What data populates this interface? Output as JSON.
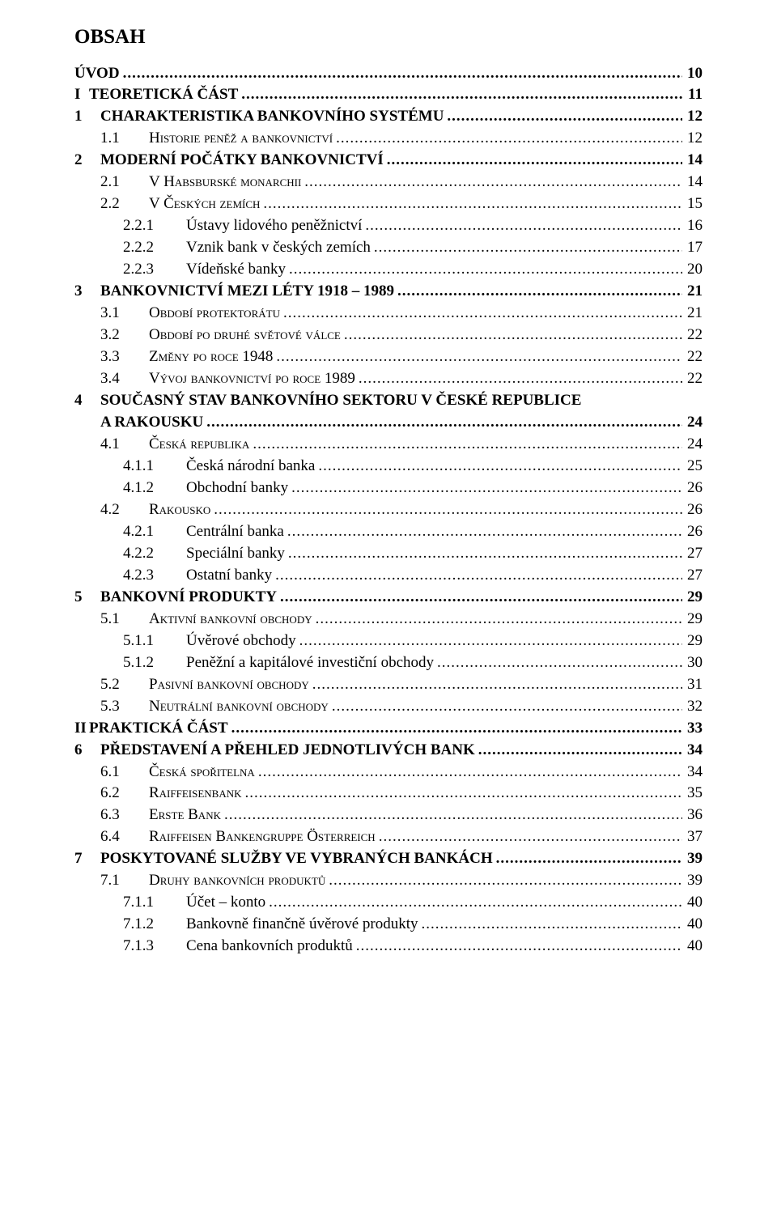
{
  "title": "OBSAH",
  "typography": {
    "font_family": "Times New Roman",
    "body_fontsize_pt": 14,
    "title_fontsize_pt": 19,
    "color": "#000000",
    "background": "#ffffff"
  },
  "entries": [
    {
      "level": "h0",
      "num": "",
      "label": "ÚVOD",
      "page": "10",
      "bold": true
    },
    {
      "level": "part",
      "num": "I",
      "label": "TEORETICKÁ ČÁST",
      "page": "11",
      "bold": true
    },
    {
      "level": "h1",
      "num": "1",
      "label": "CHARAKTERISTIKA BANKOVNÍHO SYSTÉMU",
      "page": "12",
      "bold": true
    },
    {
      "level": "h2",
      "num": "1.1",
      "label": "Historie peněž a bankovnictví",
      "page": "12",
      "smallcaps": true
    },
    {
      "level": "h1",
      "num": "2",
      "label": "MODERNÍ POČÁTKY BANKOVNICTVÍ",
      "page": "14",
      "bold": true
    },
    {
      "level": "h2",
      "num": "2.1",
      "label": "V Habsburské monarchii",
      "page": "14",
      "smallcaps": true
    },
    {
      "level": "h2",
      "num": "2.2",
      "label": "V Českých zemích",
      "page": "15",
      "smallcaps": true
    },
    {
      "level": "h3",
      "num": "2.2.1",
      "label": "Ústavy lidového peněžnictví",
      "page": "16"
    },
    {
      "level": "h3",
      "num": "2.2.2",
      "label": "Vznik bank v českých zemích",
      "page": "17"
    },
    {
      "level": "h3",
      "num": "2.2.3",
      "label": "Vídeňské banky",
      "page": "20"
    },
    {
      "level": "h1",
      "num": "3",
      "label": "BANKOVNICTVÍ MEZI LÉTY 1918 – 1989",
      "page": "21",
      "bold": true
    },
    {
      "level": "h2",
      "num": "3.1",
      "label": "Období protektorátu",
      "page": "21",
      "smallcaps": true
    },
    {
      "level": "h2",
      "num": "3.2",
      "label": "Období po druhé světové válce",
      "page": "22",
      "smallcaps": true
    },
    {
      "level": "h2",
      "num": "3.3",
      "label": "Změny po roce 1948",
      "page": "22",
      "smallcaps": true
    },
    {
      "level": "h2",
      "num": "3.4",
      "label": "Vývoj bankovnictví po roce 1989",
      "page": "22",
      "smallcaps": true
    },
    {
      "level": "h1",
      "num": "4",
      "label": "SOUČASNÝ STAV BANKOVNÍHO SEKTORU V ČESKÉ REPUBLICE A RAKOUSKU",
      "page": "24",
      "bold": true,
      "wrap": true
    },
    {
      "level": "h2",
      "num": "4.1",
      "label": "Česká republika",
      "page": "24",
      "smallcaps": true
    },
    {
      "level": "h3",
      "num": "4.1.1",
      "label": "Česká národní banka",
      "page": "25"
    },
    {
      "level": "h3",
      "num": "4.1.2",
      "label": "Obchodní banky",
      "page": "26"
    },
    {
      "level": "h2",
      "num": "4.2",
      "label": "Rakousko",
      "page": "26",
      "smallcaps": true
    },
    {
      "level": "h3",
      "num": "4.2.1",
      "label": "Centrální banka",
      "page": "26"
    },
    {
      "level": "h3",
      "num": "4.2.2",
      "label": "Speciální banky",
      "page": "27"
    },
    {
      "level": "h3",
      "num": "4.2.3",
      "label": "Ostatní banky",
      "page": "27"
    },
    {
      "level": "h1",
      "num": "5",
      "label": "BANKOVNÍ PRODUKTY",
      "page": "29",
      "bold": true
    },
    {
      "level": "h2",
      "num": "5.1",
      "label": "Aktivní bankovní obchody",
      "page": "29",
      "smallcaps": true
    },
    {
      "level": "h3",
      "num": "5.1.1",
      "label": "Úvěrové obchody",
      "page": "29"
    },
    {
      "level": "h3",
      "num": "5.1.2",
      "label": "Peněžní a kapitálové investiční obchody",
      "page": "30"
    },
    {
      "level": "h2",
      "num": "5.2",
      "label": "Pasivní bankovní obchody",
      "page": "31",
      "smallcaps": true
    },
    {
      "level": "h2",
      "num": "5.3",
      "label": "Neutrální bankovní obchody",
      "page": "32",
      "smallcaps": true
    },
    {
      "level": "part",
      "num": "II",
      "label": "PRAKTICKÁ ČÁST",
      "page": "33",
      "bold": true
    },
    {
      "level": "h1",
      "num": "6",
      "label": "PŘEDSTAVENÍ A PŘEHLED JEDNOTLIVÝCH BANK",
      "page": "34",
      "bold": true
    },
    {
      "level": "h2",
      "num": "6.1",
      "label": "Česká spořitelna",
      "page": "34",
      "smallcaps": true
    },
    {
      "level": "h2",
      "num": "6.2",
      "label": "Raiffeisenbank",
      "page": "35",
      "smallcaps": true
    },
    {
      "level": "h2",
      "num": "6.3",
      "label": "Erste Bank",
      "page": "36",
      "smallcaps": true
    },
    {
      "level": "h2",
      "num": "6.4",
      "label": "Raiffeisen Bankengruppe Österreich",
      "page": "37",
      "smallcaps": true
    },
    {
      "level": "h1",
      "num": "7",
      "label": "POSKYTOVANÉ SLUŽBY VE VYBRANÝCH BANKÁCH",
      "page": "39",
      "bold": true
    },
    {
      "level": "h2",
      "num": "7.1",
      "label": "Druhy bankovních produktů",
      "page": "39",
      "smallcaps": true
    },
    {
      "level": "h3",
      "num": "7.1.1",
      "label": "Účet – konto",
      "page": "40"
    },
    {
      "level": "h3",
      "num": "7.1.2",
      "label": "Bankovně finančně úvěrové produkty",
      "page": "40"
    },
    {
      "level": "h3",
      "num": "7.1.3",
      "label": "Cena bankovních produktů",
      "page": "40"
    }
  ]
}
